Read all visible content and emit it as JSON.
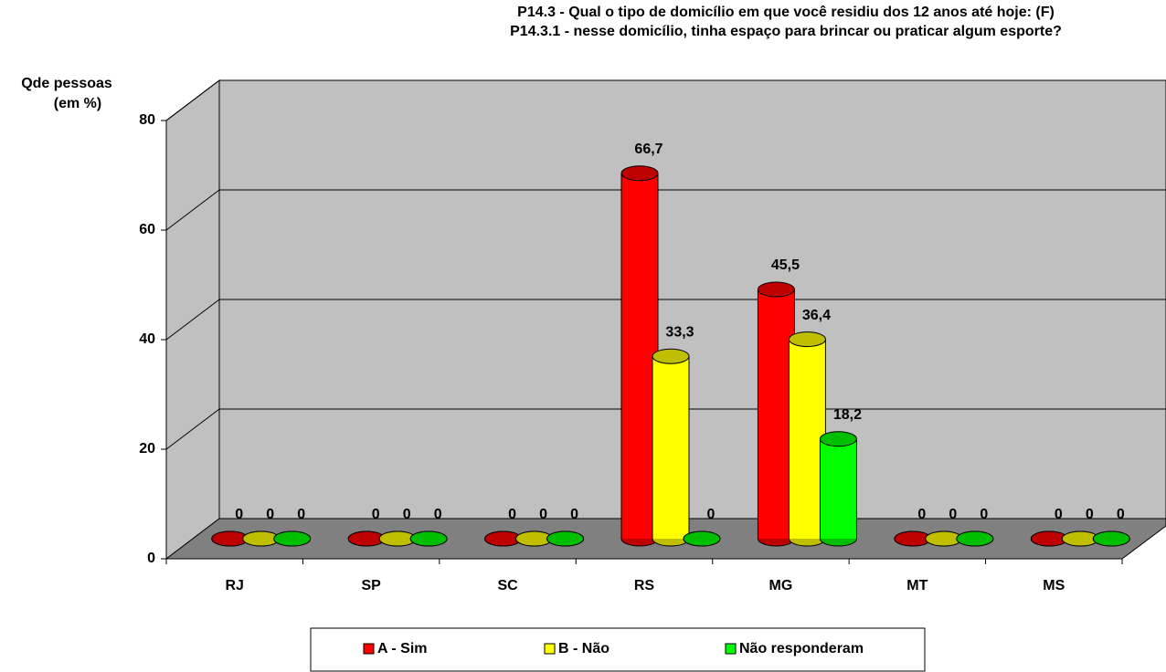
{
  "chart_data": {
    "type": "bar3d",
    "title": [
      "P14.3 - Qual o tipo de domicílio em que você residiu dos 12 anos até hoje: (F)",
      "P14.3.1 - nesse domicílio, tinha espaço para brincar ou praticar algum esporte?"
    ],
    "y_label": [
      "Qde pessoas",
      "(em %)"
    ],
    "categories": [
      "RJ",
      "SP",
      "SC",
      "RS",
      "MG",
      "MT",
      "MS"
    ],
    "series": [
      {
        "name": "A - Sim",
        "color": "#ff0000",
        "values": [
          0,
          0,
          0,
          66.7,
          45.5,
          0,
          0
        ],
        "value_labels": [
          "0",
          "0",
          "0",
          "66,7",
          "45,5",
          "0",
          "0"
        ]
      },
      {
        "name": "B - Não",
        "color": "#ffff00",
        "values": [
          0,
          0,
          0,
          33.3,
          36.4,
          0,
          0
        ],
        "value_labels": [
          "0",
          "0",
          "0",
          "33,3",
          "36,4",
          "0",
          "0"
        ]
      },
      {
        "name": "Não responderam",
        "color": "#00ff00",
        "values": [
          0,
          0,
          0,
          0,
          18.2,
          0,
          0
        ],
        "value_labels": [
          "0",
          "0",
          "0",
          "0",
          "18,2",
          "0",
          "0"
        ]
      }
    ],
    "ylim": [
      0,
      80
    ],
    "yticks": [
      0,
      20,
      40,
      60,
      80
    ],
    "grid": true,
    "legend": "bottom"
  }
}
